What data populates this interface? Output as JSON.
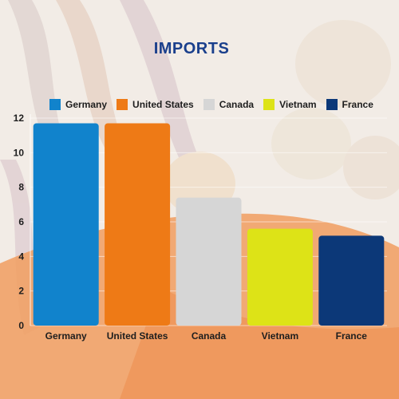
{
  "chart_data": {
    "type": "bar",
    "title": "IMPORTS",
    "categories": [
      "Germany",
      "United States",
      "Canada",
      "Vietnam",
      "France"
    ],
    "values": [
      11.7,
      11.7,
      7.4,
      5.6,
      5.2
    ],
    "colors": [
      "#1183cc",
      "#ee7a16",
      "#d6d6d6",
      "#dde317",
      "#0c3878"
    ],
    "xlabel": "",
    "ylabel": "",
    "ylim": [
      0,
      12
    ],
    "yticks": [
      0,
      2,
      4,
      6,
      8,
      10,
      12
    ],
    "grid": true,
    "legend": {
      "placement": "top",
      "entries": [
        "Germany",
        "United States",
        "Canada",
        "Vietnam",
        "France"
      ]
    }
  }
}
